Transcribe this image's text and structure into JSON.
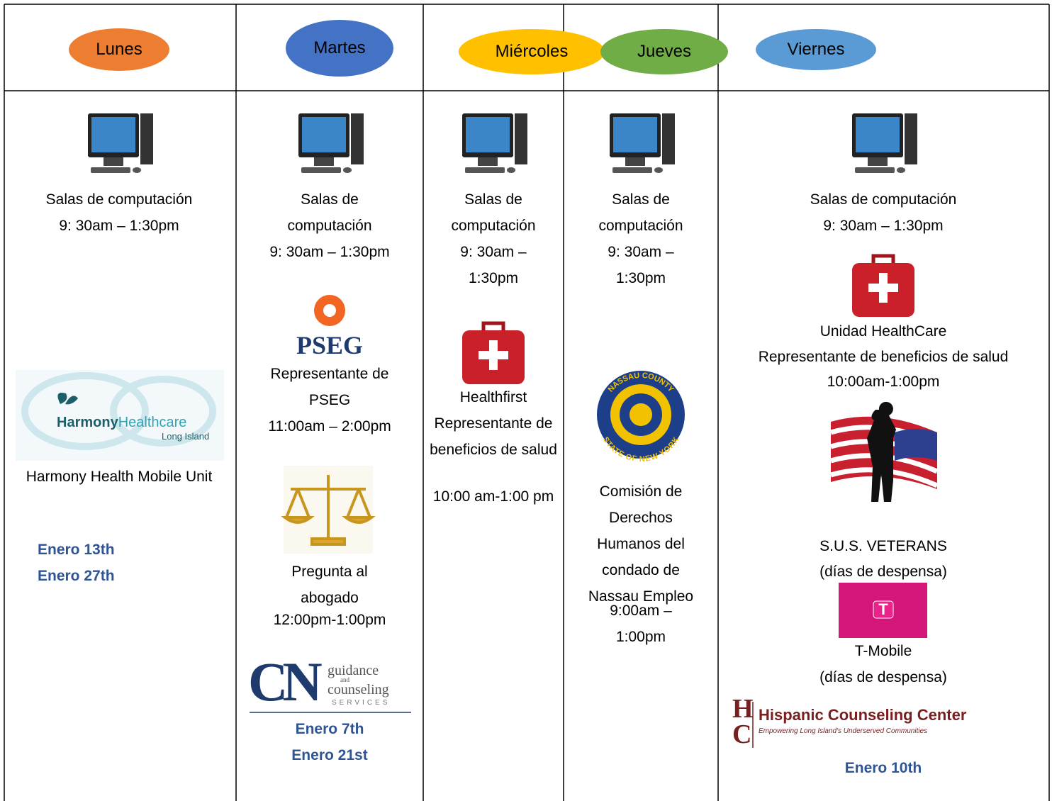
{
  "header": {
    "days": [
      "Lunes",
      "Martes",
      "Miércoles",
      "Jueves",
      "Viernes"
    ]
  },
  "columns": [
    {
      "computer": {
        "label": "Salas de computación",
        "time": "9: 30am – 1:30pm"
      },
      "logo": {
        "name": "Harmony",
        "name2": "Healthcare",
        "place": "Long Island"
      },
      "event": "Harmony Health Mobile Unit",
      "dates": [
        "Enero 13th",
        "Enero 27th"
      ]
    },
    {
      "computer": {
        "label": "Salas de computación",
        "time": "9: 30am – 1:30pm"
      },
      "logo": "PSEG",
      "event": "Representante de PSEG",
      "event_time": "11:00am – 2:00pm",
      "event2": "Pregunta al abogado",
      "event2_time": "12:00pm-1:00pm",
      "logo2": {
        "mark": "CN",
        "line1": "guidance",
        "line2": "and",
        "line3": "counseling",
        "line4": "SERVICES"
      },
      "dates": [
        "Enero 7th",
        "Enero 21st"
      ]
    },
    {
      "computer": {
        "label": "Salas de computación",
        "time": "9: 30am – 1:30pm"
      },
      "event": "Healthfirst Representante de beneficios de salud",
      "event_time": "10:00 am-1:00 pm"
    },
    {
      "computer": {
        "label": "Salas de computación",
        "time": "9: 30am – 1:30pm"
      },
      "seal": {
        "top": "NASSAU COUNTY",
        "bottom": "STATE OF NEW YORK"
      },
      "event": "Comisión de Derechos Humanos del condado de Nassau Empleo",
      "event_time": "9:00am – 1:00pm"
    },
    {
      "computer": {
        "label": "Salas de computación",
        "time": "9: 30am – 1:30pm"
      },
      "event": "Unidad HealthCare",
      "event_sub": "Representante de beneficios de salud",
      "event_time": "10:00am-1:00pm",
      "event2": "S.U.S.  VETERANS",
      "event2_note": "(días de despensa)",
      "logo": "T",
      "event3": "T-Mobile",
      "event3_note": "(días de despensa)",
      "logo2": {
        "mark": "HC",
        "name": "Hispanic Counseling Center",
        "tagline": "Empowering Long Island's Underserved Communities"
      },
      "dates": [
        "Enero 10th"
      ]
    }
  ]
}
